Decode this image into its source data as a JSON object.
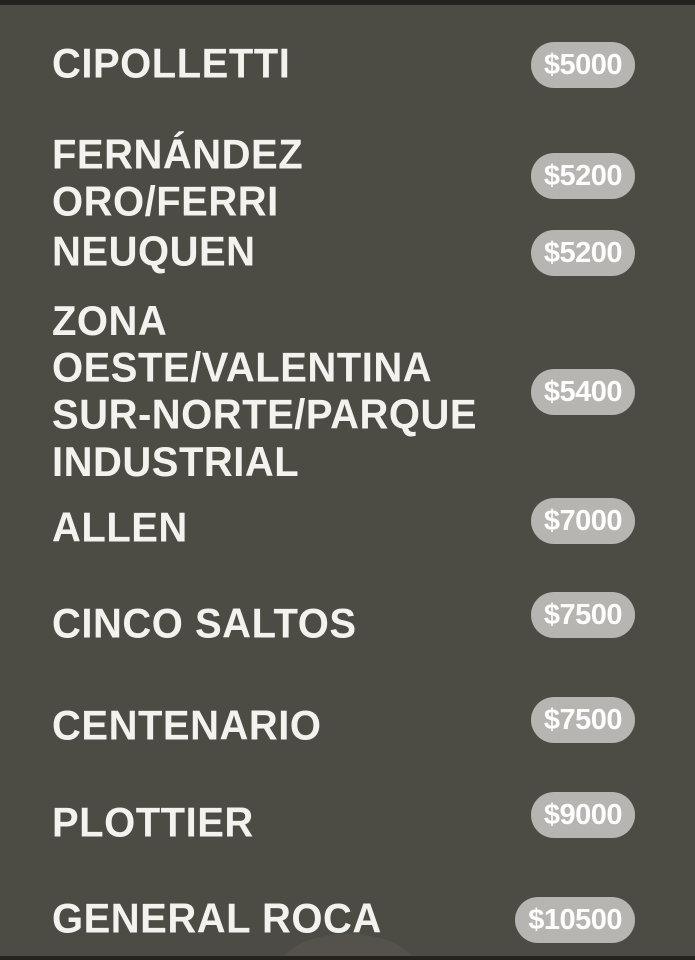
{
  "page": {
    "background_color": "#4d4c44",
    "edge_bar_color": "#23231f",
    "pill_background_color": "#b7b5b2",
    "pill_text_color": "#fdfdfc",
    "label_text_color": "#f3f2ee"
  },
  "price_list": {
    "items": [
      {
        "name": "CIPOLLETTI",
        "price": "$5000"
      },
      {
        "name": "FERNÁNDEZ ORO/FERRI",
        "price": "$5200"
      },
      {
        "name": "NEUQUEN",
        "price": "$5200"
      },
      {
        "name": "ZONA OESTE/VALENTINA\nSUR-NORTE/PARQUE\nINDUSTRIAL",
        "price": "$5400"
      },
      {
        "name": "ALLEN",
        "price": "$7000"
      },
      {
        "name": "CINCO SALTOS",
        "price": "$7500"
      },
      {
        "name": "CENTENARIO",
        "price": "$7500"
      },
      {
        "name": "PLOTTIER",
        "price": "$9000"
      },
      {
        "name": "GENERAL ROCA",
        "price": "$10500"
      }
    ]
  }
}
